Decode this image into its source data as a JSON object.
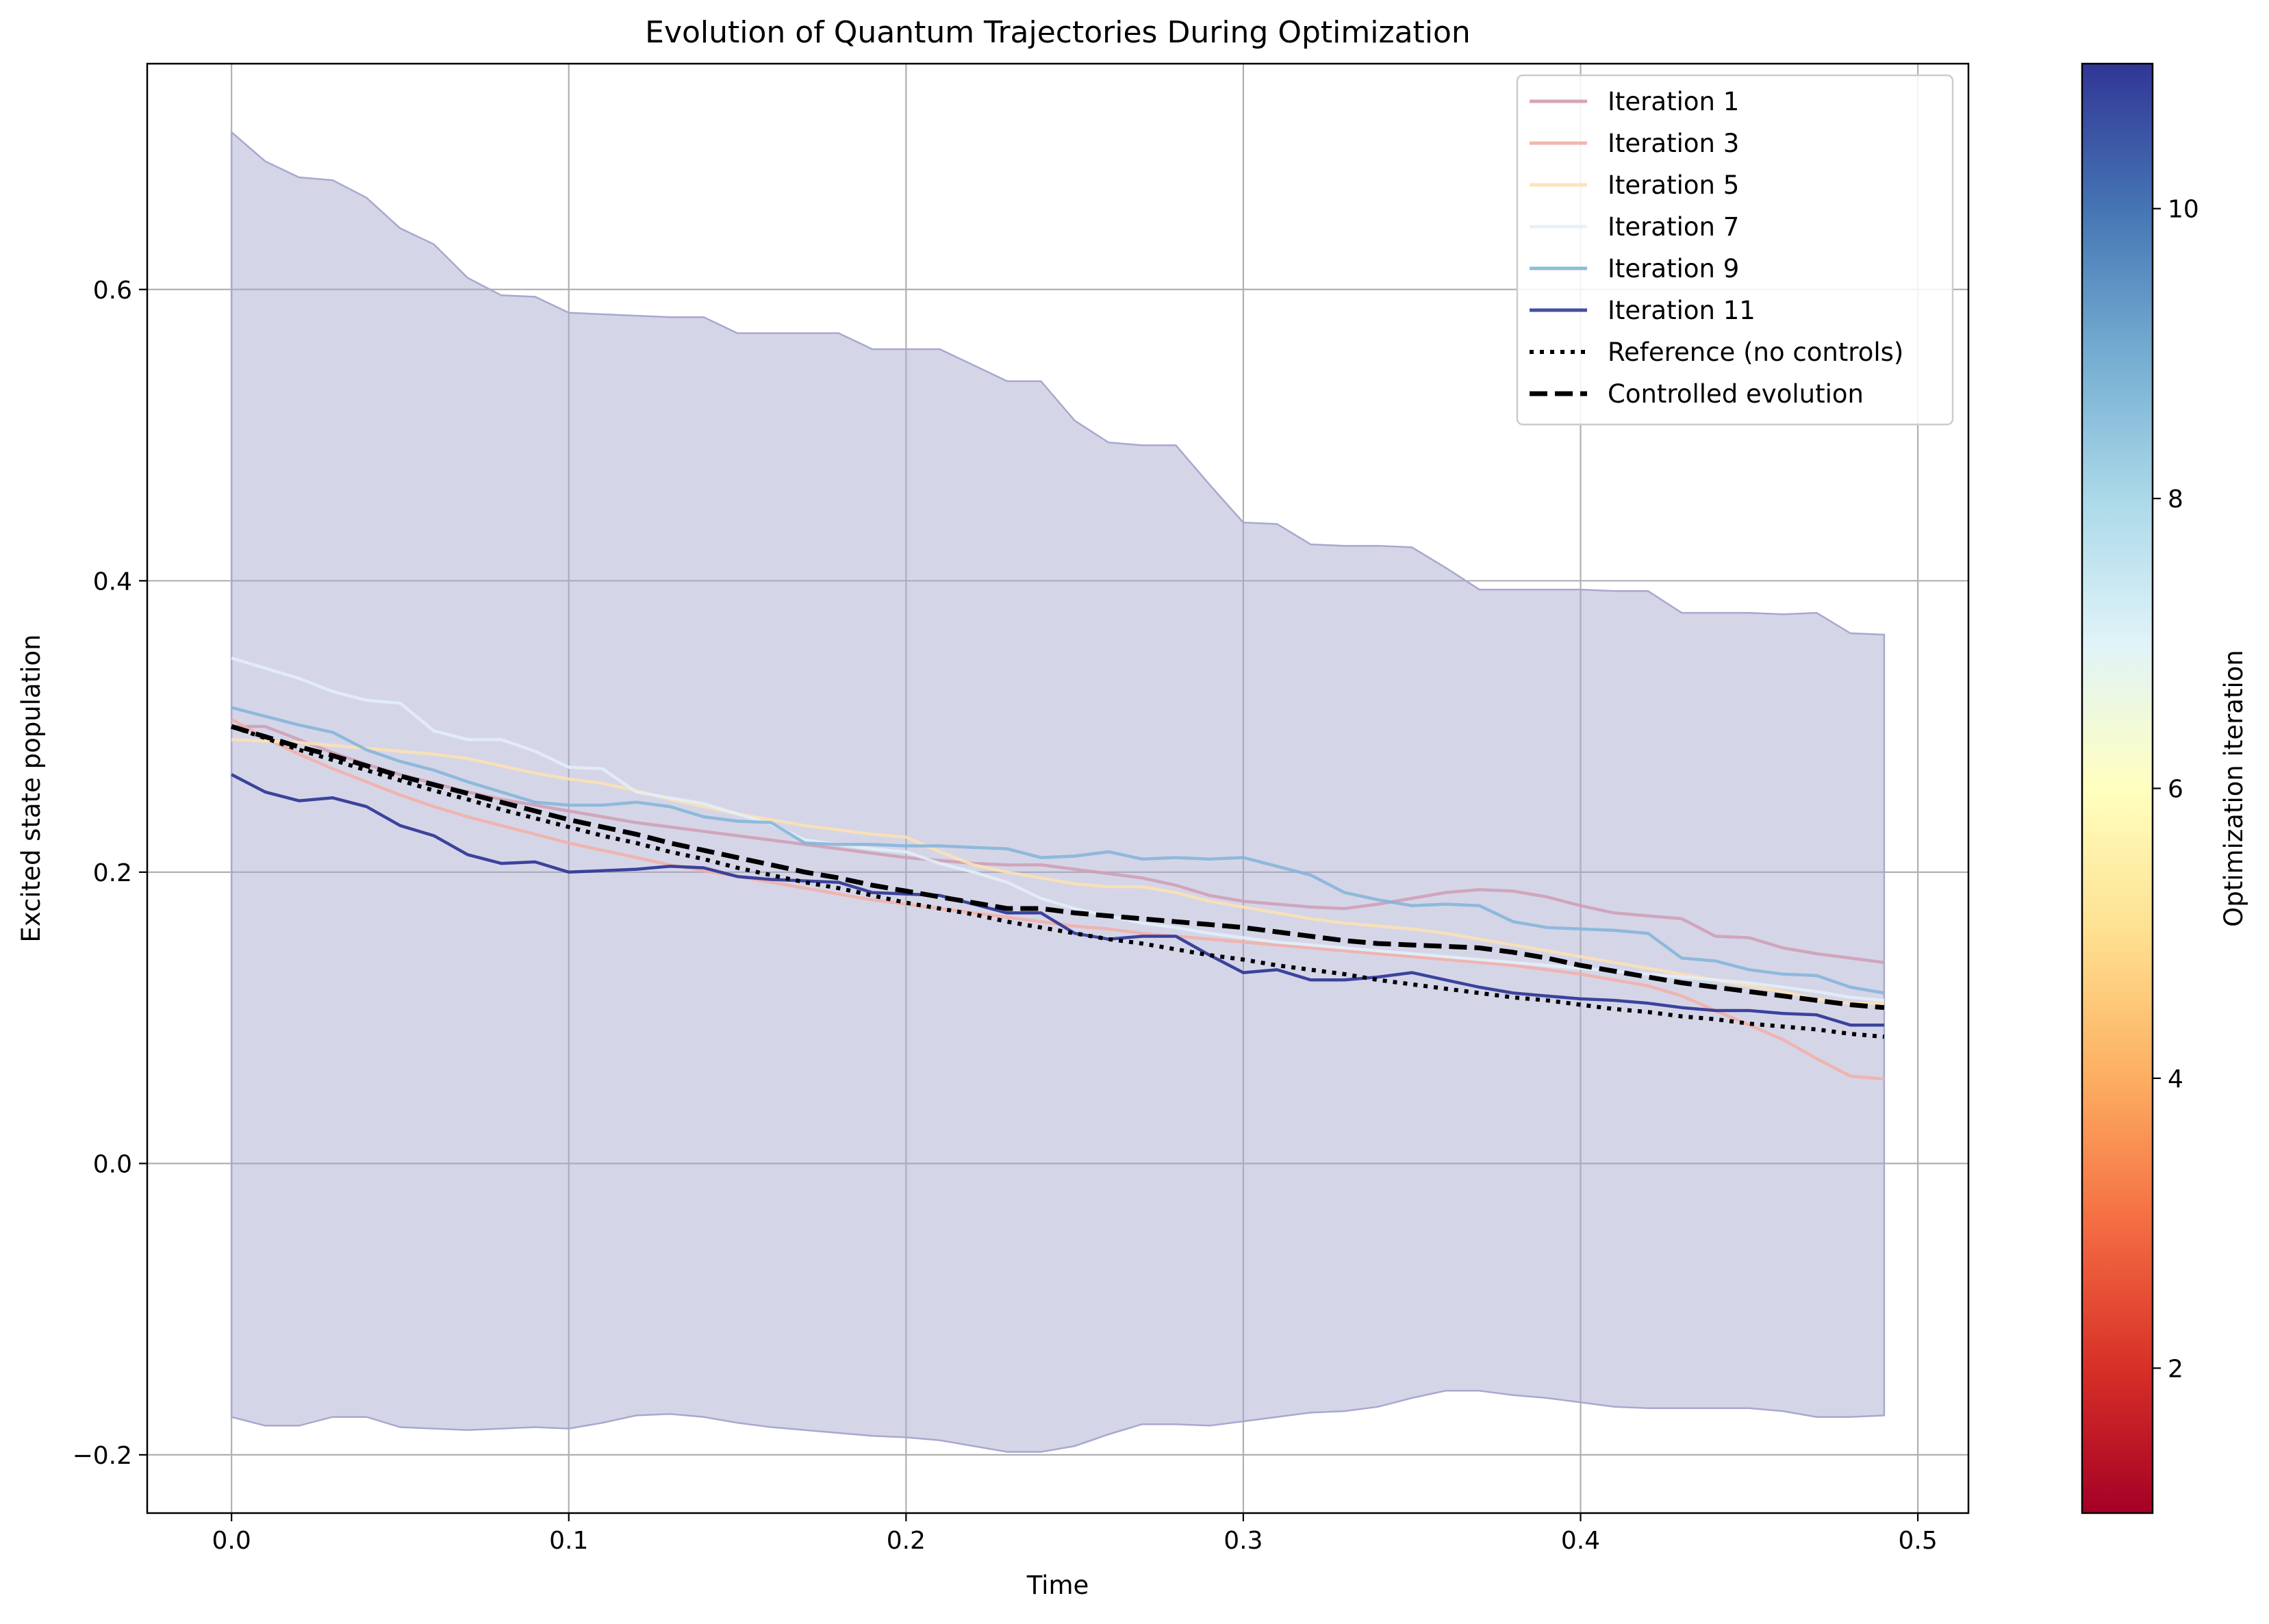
{
  "chart_data": {
    "type": "line",
    "title": "Evolution of Quantum Trajectories During Optimization",
    "xlabel": "Time",
    "ylabel": "Excited state population",
    "xlim": [
      -0.025,
      0.515
    ],
    "ylim": [
      -0.24,
      0.755
    ],
    "xticks": [
      0.0,
      0.1,
      0.2,
      0.3,
      0.4,
      0.5
    ],
    "xtick_labels": [
      "0.0",
      "0.1",
      "0.2",
      "0.3",
      "0.4",
      "0.5"
    ],
    "yticks": [
      -0.2,
      0.0,
      0.2,
      0.4,
      0.6
    ],
    "ytick_labels": [
      "−0.2",
      "0.0",
      "0.2",
      "0.4",
      "0.6"
    ],
    "grid": true,
    "legend_position": "top-right",
    "x": [
      0.0,
      0.01,
      0.02,
      0.03,
      0.04,
      0.05,
      0.06,
      0.07,
      0.08,
      0.09,
      0.1,
      0.11,
      0.12,
      0.13,
      0.14,
      0.15,
      0.16,
      0.17,
      0.18,
      0.19,
      0.2,
      0.21,
      0.22,
      0.23,
      0.24,
      0.25,
      0.26,
      0.27,
      0.28,
      0.29,
      0.3,
      0.31,
      0.32,
      0.33,
      0.34,
      0.35,
      0.36,
      0.37,
      0.38,
      0.39,
      0.4,
      0.41,
      0.42,
      0.43,
      0.44,
      0.45,
      0.46,
      0.47,
      0.48,
      0.49
    ],
    "band": {
      "color": "#a8a8cf",
      "upper": [
        0.708,
        0.688,
        0.677,
        0.675,
        0.663,
        0.642,
        0.631,
        0.608,
        0.596,
        0.595,
        0.584,
        0.583,
        0.582,
        0.581,
        0.581,
        0.57,
        0.57,
        0.57,
        0.57,
        0.559,
        0.559,
        0.559,
        0.548,
        0.537,
        0.537,
        0.51,
        0.495,
        0.493,
        0.493,
        0.466,
        0.44,
        0.439,
        0.425,
        0.424,
        0.424,
        0.423,
        0.409,
        0.394,
        0.394,
        0.394,
        0.394,
        0.393,
        0.393,
        0.378,
        0.378,
        0.378,
        0.377,
        0.378,
        0.364,
        0.363
      ],
      "lower": [
        -0.174,
        -0.18,
        -0.18,
        -0.174,
        -0.174,
        -0.181,
        -0.182,
        -0.183,
        -0.182,
        -0.181,
        -0.182,
        -0.178,
        -0.173,
        -0.172,
        -0.174,
        -0.178,
        -0.181,
        -0.183,
        -0.185,
        -0.187,
        -0.188,
        -0.19,
        -0.194,
        -0.198,
        -0.198,
        -0.194,
        -0.186,
        -0.179,
        -0.179,
        -0.18,
        -0.177,
        -0.174,
        -0.171,
        -0.17,
        -0.167,
        -0.161,
        -0.156,
        -0.156,
        -0.159,
        -0.161,
        -0.164,
        -0.167,
        -0.168,
        -0.168,
        -0.168,
        -0.168,
        -0.17,
        -0.174,
        -0.174,
        -0.173
      ]
    },
    "series": [
      {
        "name": "Iteration 1",
        "color": "#cf9cb3",
        "style": "solid",
        "values": [
          0.3,
          0.3,
          0.291,
          0.282,
          0.274,
          0.267,
          0.261,
          0.255,
          0.25,
          0.246,
          0.242,
          0.238,
          0.234,
          0.231,
          0.228,
          0.225,
          0.222,
          0.219,
          0.216,
          0.213,
          0.21,
          0.208,
          0.206,
          0.205,
          0.205,
          0.202,
          0.199,
          0.196,
          0.191,
          0.184,
          0.18,
          0.178,
          0.176,
          0.175,
          0.178,
          0.182,
          0.186,
          0.188,
          0.187,
          0.183,
          0.177,
          0.172,
          0.17,
          0.168,
          0.156,
          0.155,
          0.148,
          0.144,
          0.141,
          0.138
        ]
      },
      {
        "name": "Iteration 3",
        "color": "#f3aea5",
        "style": "solid",
        "values": [
          0.305,
          0.292,
          0.281,
          0.271,
          0.262,
          0.253,
          0.245,
          0.238,
          0.232,
          0.226,
          0.22,
          0.215,
          0.21,
          0.205,
          0.201,
          0.197,
          0.193,
          0.189,
          0.185,
          0.181,
          0.178,
          0.175,
          0.172,
          0.169,
          0.166,
          0.163,
          0.161,
          0.158,
          0.156,
          0.154,
          0.152,
          0.15,
          0.148,
          0.146,
          0.144,
          0.142,
          0.14,
          0.138,
          0.136,
          0.133,
          0.13,
          0.126,
          0.122,
          0.115,
          0.105,
          0.095,
          0.085,
          0.072,
          0.06,
          0.058
        ]
      },
      {
        "name": "Iteration 5",
        "color": "#fde2b0",
        "style": "solid",
        "values": [
          0.291,
          0.29,
          0.289,
          0.287,
          0.285,
          0.283,
          0.281,
          0.278,
          0.273,
          0.268,
          0.264,
          0.261,
          0.256,
          0.25,
          0.245,
          0.24,
          0.236,
          0.232,
          0.229,
          0.226,
          0.224,
          0.214,
          0.205,
          0.2,
          0.196,
          0.192,
          0.19,
          0.19,
          0.186,
          0.18,
          0.176,
          0.172,
          0.168,
          0.165,
          0.163,
          0.161,
          0.158,
          0.154,
          0.15,
          0.146,
          0.142,
          0.138,
          0.134,
          0.13,
          0.126,
          0.122,
          0.118,
          0.113,
          0.11,
          0.11
        ]
      },
      {
        "name": "Iteration 7",
        "color": "#e3f0f8",
        "style": "solid",
        "values": [
          0.347,
          0.34,
          0.333,
          0.324,
          0.318,
          0.316,
          0.297,
          0.291,
          0.291,
          0.283,
          0.272,
          0.271,
          0.255,
          0.251,
          0.247,
          0.24,
          0.233,
          0.222,
          0.219,
          0.216,
          0.214,
          0.206,
          0.2,
          0.193,
          0.182,
          0.175,
          0.17,
          0.165,
          0.162,
          0.158,
          0.155,
          0.152,
          0.15,
          0.148,
          0.146,
          0.144,
          0.142,
          0.14,
          0.138,
          0.136,
          0.134,
          0.132,
          0.13,
          0.128,
          0.126,
          0.124,
          0.121,
          0.118,
          0.114,
          0.112
        ]
      },
      {
        "name": "Iteration 9",
        "color": "#80b4d8",
        "style": "solid",
        "values": [
          0.313,
          0.307,
          0.301,
          0.296,
          0.284,
          0.276,
          0.27,
          0.262,
          0.255,
          0.248,
          0.246,
          0.246,
          0.248,
          0.245,
          0.238,
          0.235,
          0.234,
          0.22,
          0.219,
          0.219,
          0.218,
          0.218,
          0.217,
          0.216,
          0.21,
          0.211,
          0.214,
          0.209,
          0.21,
          0.209,
          0.21,
          0.204,
          0.198,
          0.186,
          0.181,
          0.177,
          0.178,
          0.177,
          0.166,
          0.162,
          0.161,
          0.16,
          0.158,
          0.141,
          0.139,
          0.133,
          0.13,
          0.129,
          0.121,
          0.117
        ]
      },
      {
        "name": "Iteration 11",
        "color": "#313b97",
        "style": "solid",
        "values": [
          0.267,
          0.255,
          0.249,
          0.251,
          0.245,
          0.232,
          0.225,
          0.212,
          0.206,
          0.207,
          0.2,
          0.201,
          0.202,
          0.204,
          0.203,
          0.197,
          0.195,
          0.194,
          0.193,
          0.186,
          0.185,
          0.184,
          0.178,
          0.172,
          0.172,
          0.158,
          0.154,
          0.156,
          0.156,
          0.143,
          0.131,
          0.133,
          0.126,
          0.126,
          0.128,
          0.131,
          0.126,
          0.121,
          0.117,
          0.115,
          0.113,
          0.112,
          0.11,
          0.107,
          0.105,
          0.105,
          0.103,
          0.102,
          0.095,
          0.095
        ]
      },
      {
        "name": "Reference (no controls)",
        "color": "#000000",
        "style": "dotted",
        "values": [
          0.3,
          0.292,
          0.284,
          0.277,
          0.27,
          0.263,
          0.256,
          0.25,
          0.243,
          0.237,
          0.231,
          0.225,
          0.22,
          0.214,
          0.209,
          0.203,
          0.198,
          0.193,
          0.189,
          0.184,
          0.179,
          0.175,
          0.171,
          0.166,
          0.162,
          0.158,
          0.154,
          0.151,
          0.147,
          0.143,
          0.14,
          0.136,
          0.133,
          0.13,
          0.126,
          0.123,
          0.12,
          0.117,
          0.114,
          0.112,
          0.109,
          0.106,
          0.104,
          0.101,
          0.099,
          0.096,
          0.094,
          0.092,
          0.089,
          0.087
        ]
      },
      {
        "name": "Controlled evolution",
        "color": "#000000",
        "style": "dashed",
        "values": [
          0.3,
          0.293,
          0.286,
          0.28,
          0.273,
          0.266,
          0.26,
          0.254,
          0.248,
          0.242,
          0.236,
          0.231,
          0.226,
          0.22,
          0.215,
          0.21,
          0.205,
          0.2,
          0.196,
          0.191,
          0.187,
          0.183,
          0.179,
          0.175,
          0.175,
          0.172,
          0.17,
          0.168,
          0.166,
          0.164,
          0.162,
          0.159,
          0.156,
          0.153,
          0.151,
          0.15,
          0.149,
          0.148,
          0.145,
          0.141,
          0.136,
          0.132,
          0.128,
          0.124,
          0.121,
          0.118,
          0.115,
          0.112,
          0.109,
          0.107
        ]
      }
    ],
    "legend": [
      {
        "label": "Iteration 1",
        "color": "#cf9cb3",
        "style": "solid"
      },
      {
        "label": "Iteration 3",
        "color": "#f3aea5",
        "style": "solid"
      },
      {
        "label": "Iteration 5",
        "color": "#fde2b0",
        "style": "solid"
      },
      {
        "label": "Iteration 7",
        "color": "#e3f0f8",
        "style": "solid"
      },
      {
        "label": "Iteration 9",
        "color": "#80b4d8",
        "style": "solid"
      },
      {
        "label": "Iteration 11",
        "color": "#313b97",
        "style": "solid"
      },
      {
        "label": "Reference (no controls)",
        "color": "#000000",
        "style": "dotted"
      },
      {
        "label": "Controlled evolution",
        "color": "#000000",
        "style": "dashed"
      }
    ],
    "colorbar": {
      "label": "Optimization iteration",
      "range": [
        1,
        11
      ],
      "ticks": [
        2,
        4,
        6,
        8,
        10
      ],
      "tick_labels": [
        "2",
        "4",
        "6",
        "8",
        "10"
      ],
      "colormap": "RdYlBu",
      "colors": [
        "#a50026",
        "#d73027",
        "#f46d43",
        "#fdae61",
        "#fee090",
        "#ffffbf",
        "#e0f3f8",
        "#abd9e9",
        "#74add1",
        "#4575b4",
        "#313695"
      ]
    }
  }
}
